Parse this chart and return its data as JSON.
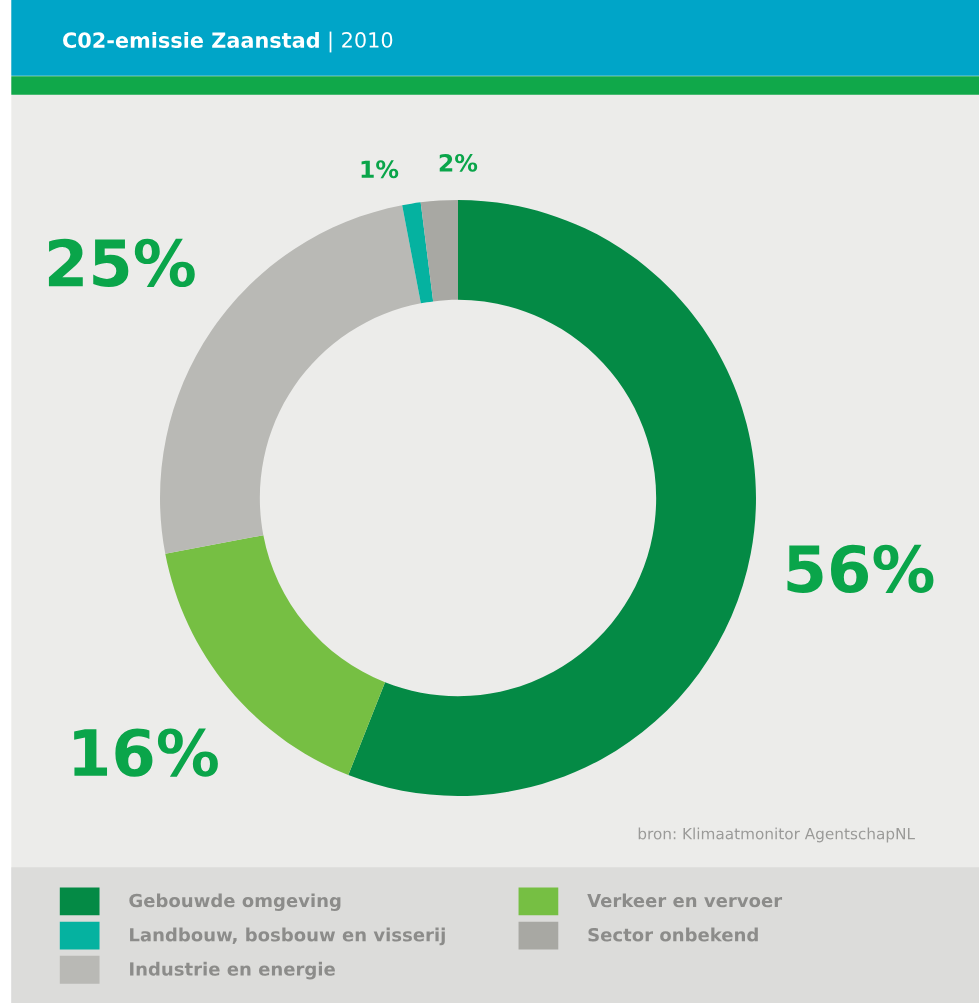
{
  "chart_data": {
    "type": "donut",
    "title": "C02-emissie Zaanstad",
    "subtitle": "| 2010",
    "categories": [
      "Gebouwde omgeving",
      "Verkeer en vervoer",
      "Industrie en energie",
      "Landbouw, bosbouw en visserij",
      "Sector onbekend"
    ],
    "values": [
      56,
      16,
      25,
      1,
      2
    ],
    "colors": [
      "#048a45",
      "#76bf43",
      "#b9b9b5",
      "#05b2a0",
      "#a8a8a3"
    ],
    "value_labels": [
      "56%",
      "16%",
      "25%",
      "1%",
      "2%"
    ],
    "legend": "bottom",
    "annotations": [
      "bron: Klimaatmonitor AgentschapNL"
    ]
  }
}
